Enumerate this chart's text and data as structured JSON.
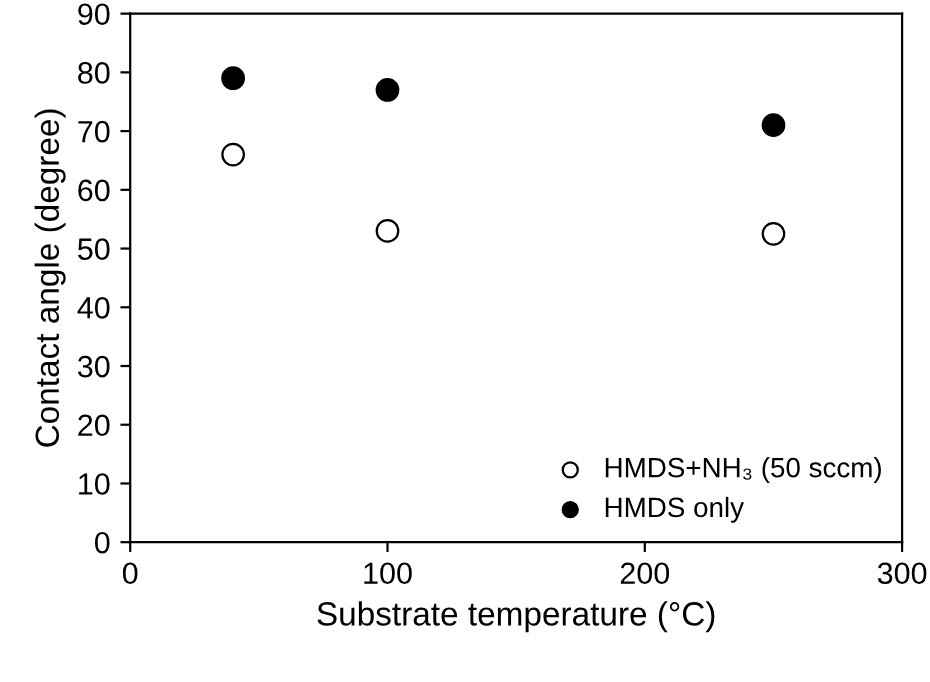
{
  "chart_data": {
    "type": "scatter",
    "xlabel": "Substrate temperature (°C)",
    "ylabel": "Contact angle (degree)",
    "series": [
      {
        "name": "HMDS+NH₃ (50 sccm)",
        "color": "#ffffff",
        "x": [
          40,
          100,
          250
        ],
        "values": [
          66,
          53,
          52.5
        ]
      },
      {
        "name": "HMDS only",
        "color": "#000000",
        "x": [
          40,
          100,
          250
        ],
        "values": [
          79,
          77,
          71
        ]
      }
    ],
    "xlim": [
      0,
      300
    ],
    "xticks": [
      0,
      100,
      200,
      300
    ],
    "ylim": [
      0,
      90
    ],
    "yticks": [
      0,
      10,
      20,
      30,
      40,
      50,
      60,
      70,
      80,
      90
    ],
    "grid": false,
    "legend": "bottom right",
    "marker": "circle"
  }
}
